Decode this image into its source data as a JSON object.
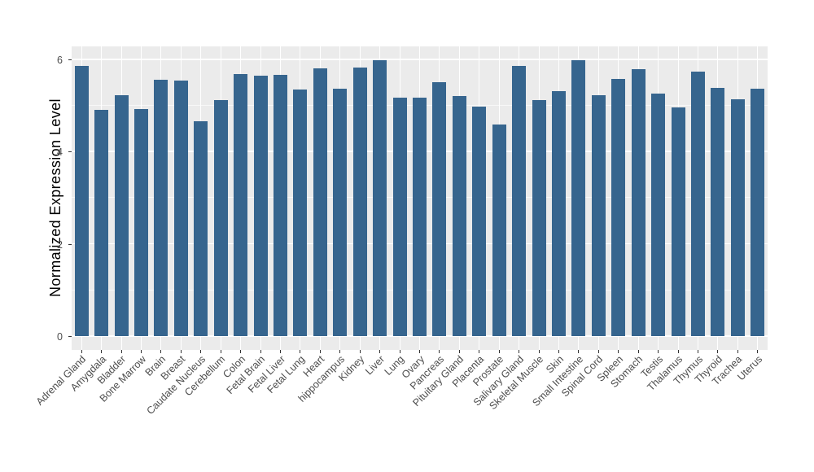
{
  "chart_data": {
    "type": "bar",
    "title": "",
    "xlabel": "",
    "ylabel": "Normalized Expression Level",
    "ylim": [
      -0.3,
      6.3
    ],
    "yticks": [
      0,
      2,
      4,
      6
    ],
    "yticks_minor": [
      1,
      3,
      5
    ],
    "grid": true,
    "legend": null,
    "categories": [
      "Adrenal Gland",
      "Amygdala",
      "Bladder",
      "Bone Marrow",
      "Brain",
      "Breast",
      "Caudate Nucleus",
      "Cerebellum",
      "Colon",
      "Fetal Brain",
      "Fetal Liver",
      "Fetal Lung",
      "Heart",
      "hippocampus",
      "Kidney",
      "Liver",
      "Lung",
      "Ovary",
      "Pancreas",
      "Pituitary Gland",
      "Placenta",
      "Prostate",
      "Salivary Gland",
      "Skeletal Muscle",
      "Skin",
      "Small Intestine",
      "Spinal Cord",
      "Spleen",
      "Stomach",
      "Testis",
      "Thalamus",
      "Thymus",
      "Thyroid",
      "Trachea",
      "Uterus"
    ],
    "values": [
      5.85,
      4.91,
      5.22,
      4.92,
      5.56,
      5.54,
      4.65,
      5.12,
      5.68,
      5.64,
      5.67,
      5.35,
      5.81,
      5.36,
      5.83,
      5.98,
      5.17,
      5.17,
      5.51,
      5.21,
      4.97,
      4.59,
      5.85,
      5.12,
      5.32,
      5.98,
      5.22,
      5.57,
      5.79,
      5.26,
      4.96,
      5.73,
      5.38,
      5.13,
      5.36
    ],
    "colors": {
      "bar": "#36658E",
      "panel_background": "#EBEBEB",
      "grid_major": "#FFFFFF",
      "grid_minor": "#FFFFFF",
      "axis_text": "#4D4D4D",
      "axis_title": "#000000",
      "tick_mark": "#333333"
    }
  }
}
